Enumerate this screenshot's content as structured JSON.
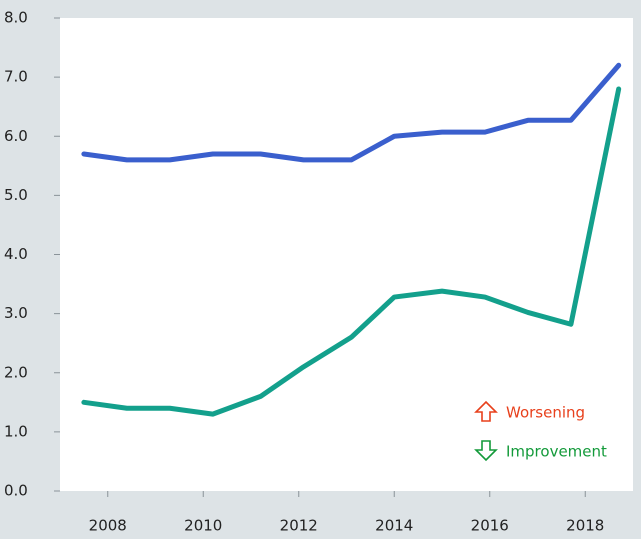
{
  "chart_data": {
    "type": "line",
    "x": [
      2007.5,
      2008.4,
      2009.3,
      2010.2,
      2011.2,
      2012.1,
      2013.1,
      2014.0,
      2015.0,
      2015.9,
      2016.8,
      2017.7,
      2018.7
    ],
    "series": [
      {
        "color": "#3a5fcd",
        "values": [
          5.7,
          5.6,
          5.6,
          5.7,
          5.7,
          5.6,
          5.6,
          6.0,
          6.07,
          6.07,
          6.27,
          6.27,
          7.2
        ]
      },
      {
        "color": "#13a08c",
        "values": [
          1.5,
          1.4,
          1.4,
          1.3,
          1.6,
          2.1,
          2.6,
          3.28,
          3.38,
          3.28,
          3.02,
          2.82,
          6.8
        ]
      }
    ],
    "xlim": [
      2007,
      2019
    ],
    "xticks": [
      2008,
      2010,
      2012,
      2014,
      2016,
      2018
    ],
    "ylim": [
      0,
      8
    ],
    "yticks": [
      {
        "value": 0,
        "label": "0.0"
      },
      {
        "value": 1,
        "label": "1.0"
      },
      {
        "value": 2,
        "label": "2.0"
      },
      {
        "value": 3,
        "label": "3.0"
      },
      {
        "value": 4,
        "label": "4.0"
      },
      {
        "value": 5,
        "label": "5.0"
      },
      {
        "value": 6,
        "label": "6.0"
      },
      {
        "value": 7,
        "label": "7.0"
      },
      {
        "value": 8,
        "label": "8.0"
      }
    ],
    "annotations": [
      {
        "text": "Worsening",
        "color": "#e8401c"
      },
      {
        "text": "Improvement",
        "color": "#139a3a"
      }
    ]
  }
}
